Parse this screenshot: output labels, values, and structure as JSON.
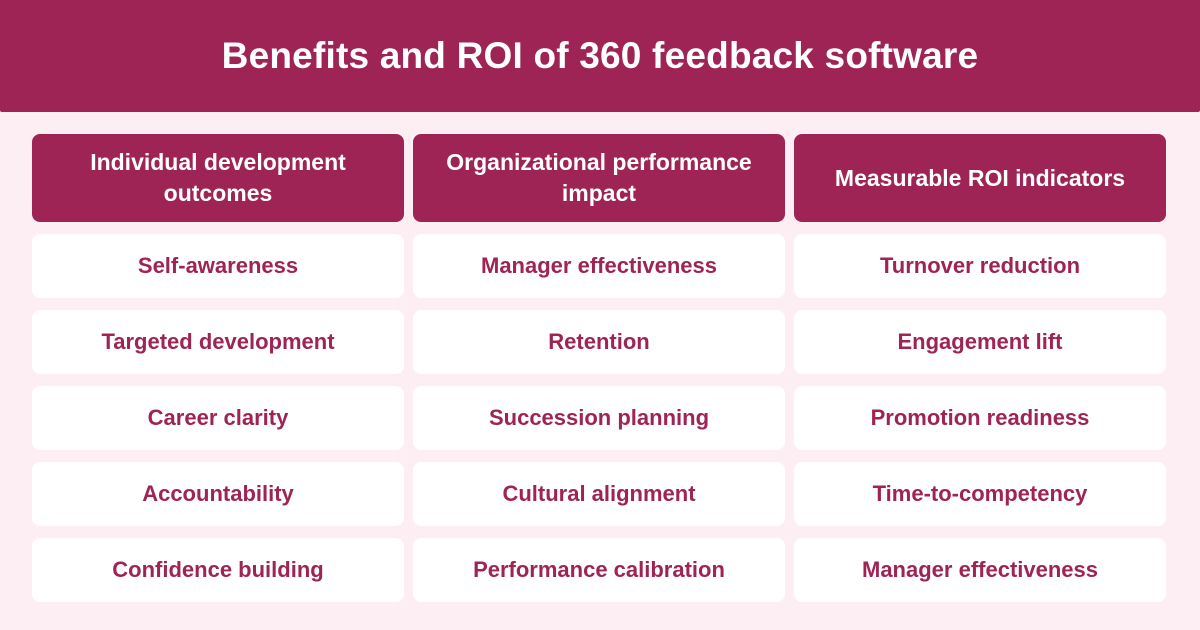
{
  "title": "Benefits and ROI of 360 feedback software",
  "colors": {
    "primary": "#9e2455",
    "background": "#fdeef3",
    "cell": "#ffffff"
  },
  "columns": [
    {
      "header": "Individual development outcomes",
      "items": [
        "Self-awareness",
        "Targeted development",
        "Career clarity",
        "Accountability",
        "Confidence building"
      ]
    },
    {
      "header": "Organizational performance impact",
      "items": [
        "Manager effectiveness",
        "Retention",
        "Succession planning",
        "Cultural alignment",
        "Performance calibration"
      ]
    },
    {
      "header": "Measurable ROI indicators",
      "items": [
        "Turnover reduction",
        "Engagement lift",
        "Promotion readiness",
        "Time-to-competency",
        "Manager effectiveness"
      ]
    }
  ]
}
